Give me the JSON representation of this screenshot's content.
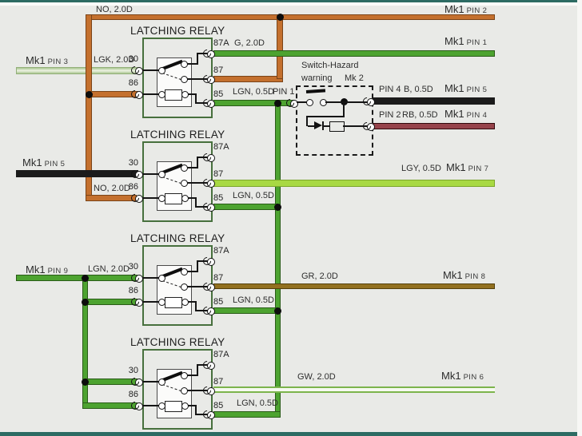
{
  "colors": {
    "background": "#e9eae7",
    "frame_teal": "#2d6b63",
    "wire_orange_no": "#c4702e",
    "wire_green": "#4da330",
    "wire_light_green_lgk": "#cfe0bd",
    "wire_black": "#1b1b1b",
    "wire_red_black_rb": "#96434b",
    "wire_lgy": "#a8d943",
    "wire_brown_gr": "#92701f",
    "wire_green_white_gw": "#7cb44c",
    "relay_box_green": "#47703d"
  },
  "relays": [
    {
      "title": "LATCHING RELAY",
      "t30": "30",
      "t86": "86",
      "t87a": "87A",
      "t87": "87",
      "t85": "85"
    },
    {
      "title": "LATCHING RELAY",
      "t30": "30",
      "t86": "86",
      "t87a": "87A",
      "t87": "87",
      "t85": "85"
    },
    {
      "title": "LATCHING RELAY",
      "t30": "30",
      "t86": "86",
      "t87a": "87A",
      "t87": "87",
      "t85": "85"
    },
    {
      "title": "LATCHING RELAY",
      "t30": "30",
      "t86": "86",
      "t87a": "87A",
      "t87": "87",
      "t85": "85"
    }
  ],
  "labels": {
    "no_top": "NO, 2.0D",
    "mk1_pin2": {
      "mk": "Mk1",
      "pin": "PIN 2"
    },
    "mk1_pin1": {
      "mk": "Mk1",
      "pin": "PIN 1"
    },
    "mk1_pin3": {
      "mk": "Mk1",
      "pin": "PIN 3"
    },
    "lgk": "LGK, 2.0D",
    "g": "G, 2.0D",
    "lgn_r1": "LGN, 0.5D",
    "pin1": "PIN 1",
    "mk1_pin5_left": {
      "mk": "Mk1",
      "pin": "PIN 5"
    },
    "no_r2": "NO, 2.0D",
    "lgy": "LGY, 0.5D",
    "mk1_pin7": {
      "mk": "Mk1",
      "pin": "PIN 7"
    },
    "lgn_r2": "LGN, 0.5D",
    "mk1_pin9": {
      "mk": "Mk1",
      "pin": "PIN 9"
    },
    "lgn_20": "LGN, 2.0D",
    "gr": "GR, 2.0D",
    "mk1_pin8": {
      "mk": "Mk1",
      "pin": "PIN 8"
    },
    "lgn_r3": "LGN, 0.5D",
    "gw": "GW, 2.0D",
    "mk1_pin6": {
      "mk": "Mk1",
      "pin": "PIN 6"
    },
    "lgn_r4": "LGN, 0.5D"
  },
  "hazard": {
    "title_line1": "Switch-Hazard",
    "title_line2": "warning",
    "connector": "Mk 2",
    "pin4": "PIN 4",
    "b": "B, 0.5D",
    "mk1_pin5": {
      "mk": "Mk1",
      "pin": "PIN 5"
    },
    "pin2": "PIN 2",
    "rb": "RB, 0.5D",
    "mk1_pin4": {
      "mk": "Mk1",
      "pin": "PIN 4"
    }
  }
}
